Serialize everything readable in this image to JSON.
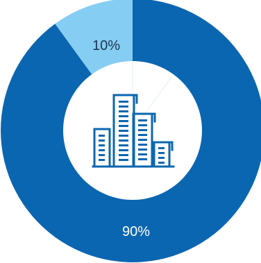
{
  "chart_data": {
    "type": "pie",
    "variant": "donut",
    "slices": [
      {
        "label": "90%",
        "value": 90,
        "color": "#0b66b1"
      },
      {
        "label": "10%",
        "value": 10,
        "color": "#86cdf3"
      }
    ]
  },
  "center_icon": {
    "name": "city-buildings-icon",
    "color": "#0b66b1"
  }
}
